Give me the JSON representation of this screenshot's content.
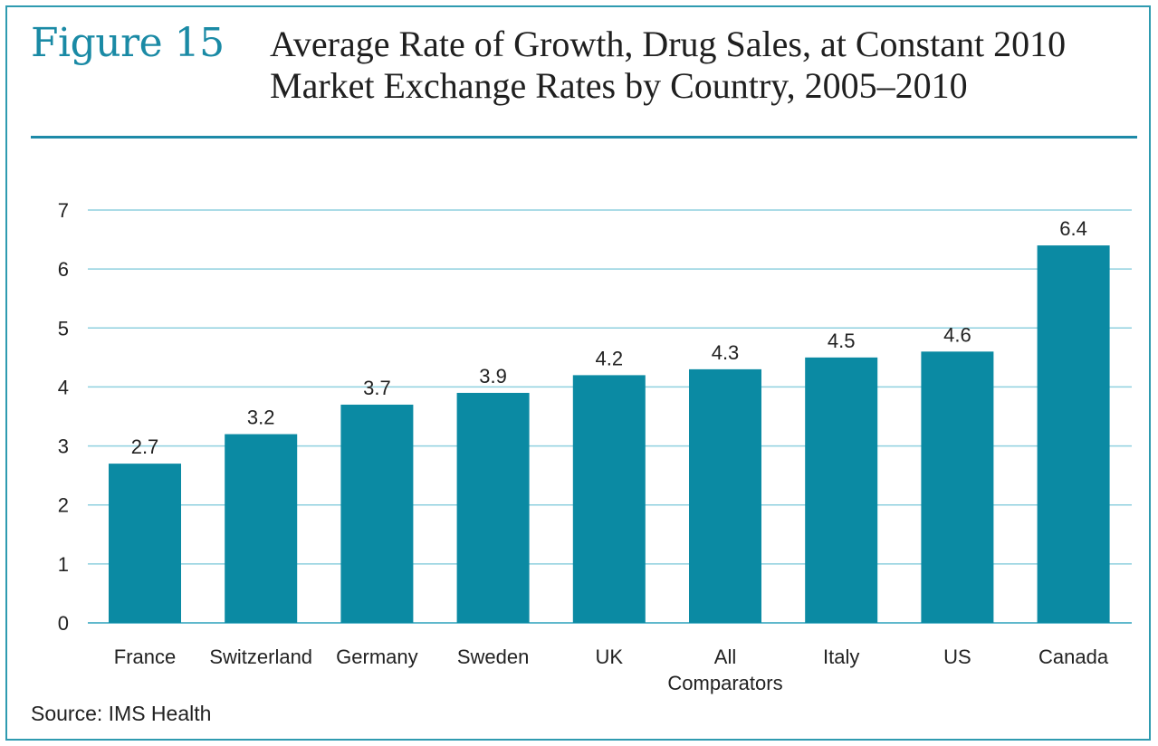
{
  "figure": {
    "label": "Figure 15",
    "title_line1": "Average Rate of Growth, Drug Sales, at Constant 2010",
    "title_line2": "Market Exchange Rates by Country, 2005–2010",
    "source": "Source: IMS Health"
  },
  "colors": {
    "bar": "#0b8aa3",
    "grid": "#8fd0df",
    "axis": "#5fb8cc",
    "accent": "#1a8aa5"
  },
  "chart_data": {
    "type": "bar",
    "categories": [
      "France",
      "Switzerland",
      "Germany",
      "Sweden",
      "UK",
      "All\nComparators",
      "Italy",
      "US",
      "Canada"
    ],
    "values": [
      2.7,
      3.2,
      3.7,
      3.9,
      4.2,
      4.3,
      4.5,
      4.6,
      6.4
    ],
    "value_labels": [
      "2.7",
      "3.2",
      "3.7",
      "3.9",
      "4.2",
      "4.3",
      "4.5",
      "4.6",
      "6.4"
    ],
    "ylim": [
      0,
      7
    ],
    "yticks": [
      0,
      1,
      2,
      3,
      4,
      5,
      6,
      7
    ],
    "xlabel": "",
    "ylabel": "",
    "grid": true,
    "legend": "none"
  }
}
